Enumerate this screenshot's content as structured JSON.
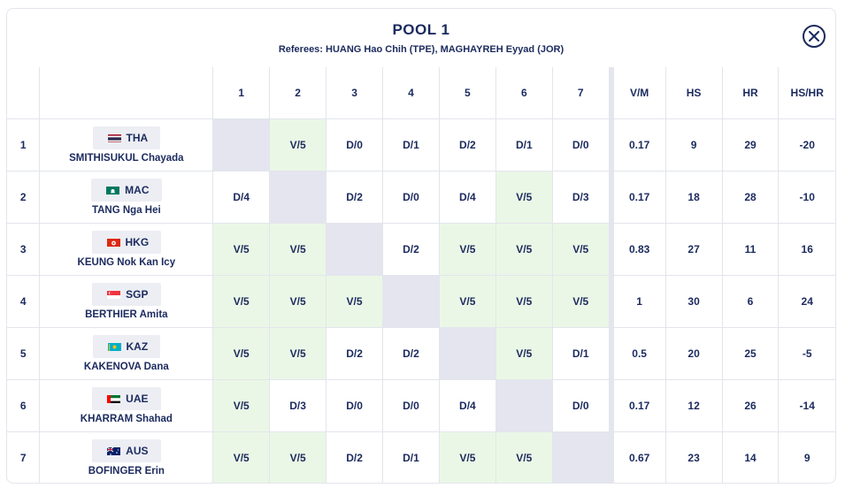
{
  "dialog": {
    "title": "POOL 1",
    "referees": "Referees: HUANG Hao Chih (TPE), MAGHAYREH Eyyad (JOR)",
    "close_icon": "close-icon"
  },
  "columns": {
    "bouts": [
      "1",
      "2",
      "3",
      "4",
      "5",
      "6",
      "7"
    ],
    "vm": "V/M",
    "hs": "HS",
    "hr": "HR",
    "ind": "HS/HR"
  },
  "colors": {
    "victory_bg": "#eaf7e6",
    "self_bg": "#e4e5ee",
    "text": "#1b2a5e"
  },
  "rows": [
    {
      "num": "1",
      "nation": "THA",
      "flag": "flag-tha",
      "name": "SMITHISUKUL Chayada",
      "results": [
        "",
        "V/5",
        "D/0",
        "D/1",
        "D/2",
        "D/1",
        "D/0"
      ],
      "vm": "0.17",
      "hs": "9",
      "hr": "29",
      "ind": "-20"
    },
    {
      "num": "2",
      "nation": "MAC",
      "flag": "flag-mac",
      "name": "TANG Nga Hei",
      "results": [
        "D/4",
        "",
        "D/2",
        "D/0",
        "D/4",
        "V/5",
        "D/3"
      ],
      "vm": "0.17",
      "hs": "18",
      "hr": "28",
      "ind": "-10"
    },
    {
      "num": "3",
      "nation": "HKG",
      "flag": "flag-hkg",
      "name": "KEUNG Nok Kan Icy",
      "results": [
        "V/5",
        "V/5",
        "",
        "D/2",
        "V/5",
        "V/5",
        "V/5"
      ],
      "vm": "0.83",
      "hs": "27",
      "hr": "11",
      "ind": "16"
    },
    {
      "num": "4",
      "nation": "SGP",
      "flag": "flag-sgp",
      "name": "BERTHIER Amita",
      "results": [
        "V/5",
        "V/5",
        "V/5",
        "",
        "V/5",
        "V/5",
        "V/5"
      ],
      "vm": "1",
      "hs": "30",
      "hr": "6",
      "ind": "24"
    },
    {
      "num": "5",
      "nation": "KAZ",
      "flag": "flag-kaz",
      "name": "KAKENOVA Dana",
      "results": [
        "V/5",
        "V/5",
        "D/2",
        "D/2",
        "",
        "V/5",
        "D/1"
      ],
      "vm": "0.5",
      "hs": "20",
      "hr": "25",
      "ind": "-5"
    },
    {
      "num": "6",
      "nation": "UAE",
      "flag": "flag-uae",
      "name": "KHARRAM Shahad",
      "results": [
        "V/5",
        "D/3",
        "D/0",
        "D/0",
        "D/4",
        "",
        "D/0"
      ],
      "vm": "0.17",
      "hs": "12",
      "hr": "26",
      "ind": "-14"
    },
    {
      "num": "7",
      "nation": "AUS",
      "flag": "flag-aus",
      "name": "BOFINGER Erin",
      "results": [
        "V/5",
        "V/5",
        "D/2",
        "D/1",
        "V/5",
        "V/5",
        ""
      ],
      "vm": "0.67",
      "hs": "23",
      "hr": "14",
      "ind": "9"
    }
  ]
}
